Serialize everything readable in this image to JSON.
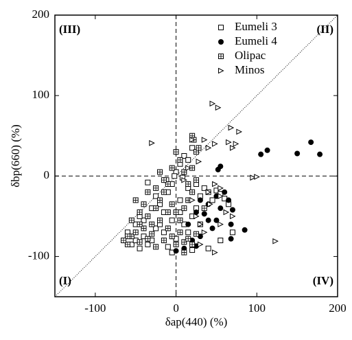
{
  "chart_data": {
    "type": "scatter",
    "x_label": "δap(440) (%)",
    "y_label": "δbp(660) (%)",
    "annotations": [
      "(III)",
      "(II)",
      "(I)",
      "(IV)"
    ],
    "xlim": [
      -150,
      200
    ],
    "ylim": [
      -150,
      200
    ],
    "xticks": [
      -100,
      0,
      100,
      200
    ],
    "yticks": [
      -100,
      0,
      100,
      200
    ],
    "legend": "upper right",
    "series": [
      {
        "name": "Eumeli 3",
        "marker": "open-square",
        "color": "#000000",
        "x": [
          -60,
          -55,
          -50,
          -45,
          -40,
          -35,
          -30,
          -25,
          -20,
          -15,
          -10,
          -5,
          0,
          5,
          10,
          15,
          20,
          25,
          30,
          35,
          40,
          45,
          50,
          55,
          60,
          65,
          70,
          -5,
          0,
          5,
          10,
          15,
          20,
          -10,
          -20,
          -30,
          -40,
          -50,
          -35,
          -25,
          5,
          15,
          25,
          -15,
          55,
          40,
          -5,
          20,
          -45,
          -12,
          -2,
          8
        ],
        "values": [
          -70,
          -85,
          -80,
          -90,
          -75,
          -85,
          -80,
          -65,
          -60,
          -70,
          -88,
          -55,
          -78,
          -45,
          -60,
          -70,
          -50,
          -40,
          -25,
          -15,
          -20,
          -30,
          -18,
          -22,
          -28,
          -35,
          -70,
          -10,
          5,
          15,
          25,
          20,
          35,
          -20,
          -35,
          -40,
          -55,
          -60,
          -8,
          -25,
          -30,
          -15,
          -10,
          -45,
          -80,
          -90,
          -95,
          -92,
          -50,
          -5,
          0,
          -2
        ]
      },
      {
        "name": "Eumeli 4",
        "marker": "filled-circle",
        "color": "#000000",
        "x": [
          105,
          113,
          150,
          167,
          178,
          55,
          52,
          60,
          65,
          70,
          68,
          85,
          68,
          50,
          45,
          40,
          35,
          25,
          30,
          20,
          25,
          10,
          0,
          15,
          50,
          55,
          40,
          30
        ],
        "values": [
          27,
          32,
          28,
          42,
          27,
          12,
          8,
          -20,
          -30,
          -42,
          -60,
          -67,
          -78,
          -55,
          -65,
          -35,
          -47,
          -45,
          -75,
          -80,
          -87,
          -90,
          -93,
          -60,
          -25,
          -40,
          -55,
          -30
        ]
      },
      {
        "name": "Olipac",
        "marker": "crossed-square",
        "color": "#000000",
        "x": [
          -60,
          -55,
          -50,
          -45,
          -40,
          -35,
          -30,
          -25,
          -20,
          -15,
          -10,
          -5,
          0,
          5,
          10,
          15,
          20,
          25,
          -55,
          -45,
          -40,
          -35,
          -30,
          -25,
          -20,
          -15,
          -10,
          -5,
          0,
          5,
          10,
          15,
          20,
          25,
          0,
          -5,
          5,
          10,
          15,
          20,
          25,
          20,
          22,
          28,
          -20,
          -15,
          10,
          30,
          -50,
          -35,
          -25,
          35,
          -45,
          -60,
          -65,
          -10
        ],
        "values": [
          -85,
          -75,
          -70,
          -82,
          -65,
          -78,
          -72,
          -88,
          -55,
          -80,
          -65,
          -75,
          -85,
          -70,
          -82,
          -78,
          -85,
          -72,
          -55,
          -45,
          -35,
          -50,
          -60,
          -40,
          -30,
          -20,
          -10,
          -35,
          -45,
          -55,
          -40,
          -30,
          -20,
          -5,
          30,
          10,
          20,
          5,
          -10,
          10,
          30,
          50,
          45,
          35,
          5,
          -5,
          -95,
          -60,
          -30,
          -20,
          -15,
          -40,
          -60,
          -75,
          -80,
          -45
        ]
      },
      {
        "name": "Minos",
        "marker": "open-triangle-right",
        "color": "#000000",
        "x": [
          -30,
          45,
          52,
          68,
          78,
          65,
          74,
          70,
          48,
          40,
          35,
          20,
          28,
          48,
          55,
          95,
          100,
          123,
          55,
          40,
          35,
          48,
          30,
          25,
          20,
          55,
          62,
          70,
          15,
          10,
          42,
          30
        ],
        "values": [
          41,
          90,
          85,
          60,
          55,
          42,
          40,
          35,
          40,
          35,
          45,
          45,
          18,
          -10,
          -15,
          -2,
          -1,
          -81,
          -25,
          -20,
          -70,
          -95,
          -60,
          -50,
          -30,
          -60,
          -45,
          -50,
          10,
          -5,
          -35,
          -85
        ]
      }
    ]
  }
}
